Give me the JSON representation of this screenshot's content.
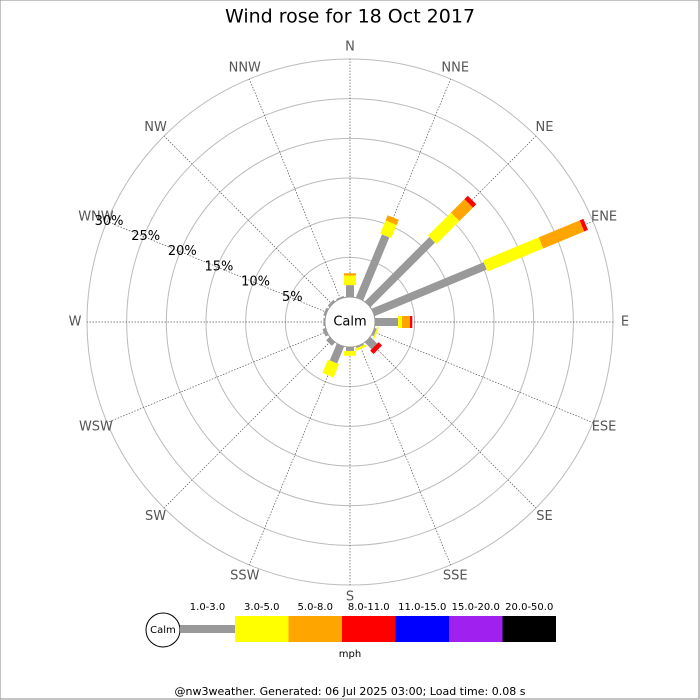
{
  "chart_data": {
    "type": "windrose",
    "title": "Wind rose for 18 Oct 2017",
    "categories": [
      "N",
      "NNE",
      "NE",
      "ENE",
      "E",
      "ESE",
      "SE",
      "SSE",
      "S",
      "SSW",
      "SW",
      "WSW",
      "W",
      "WNW",
      "NW",
      "NNW"
    ],
    "series": [
      {
        "name": "1.0-3.0",
        "color": "#999999",
        "values": [
          1.5,
          8.6,
          11.5,
          15.3,
          2.9,
          0.3,
          1.2,
          0.2,
          0.5,
          2.3,
          0.6,
          0.4,
          0.2,
          0.3,
          0.3,
          0.2
        ]
      },
      {
        "name": "3.0-5.0",
        "color": "#ffff00",
        "values": [
          1.2,
          1.8,
          4.1,
          7.6,
          0.5,
          0.2,
          0,
          0.3,
          0.6,
          1.8,
          0,
          0,
          0,
          0,
          0,
          0
        ]
      },
      {
        "name": "5.0-8.0",
        "color": "#ffa500",
        "values": [
          0.3,
          0.7,
          2.4,
          5.6,
          1.0,
          0,
          0,
          0,
          0,
          0,
          0,
          0,
          0,
          0,
          0,
          0
        ]
      },
      {
        "name": "8.0-11.0",
        "color": "#ff0000",
        "values": [
          0,
          0,
          0.6,
          0.5,
          0.3,
          0,
          0.6,
          0,
          0,
          0,
          0,
          0,
          0,
          0,
          0,
          0
        ]
      },
      {
        "name": "11.0-15.0",
        "color": "#0000ff",
        "values": [
          0,
          0,
          0,
          0,
          0,
          0,
          0,
          0,
          0,
          0,
          0,
          0,
          0,
          0,
          0,
          0
        ]
      },
      {
        "name": "15.0-20.0",
        "color": "#a020f0",
        "values": [
          0,
          0,
          0,
          0,
          0,
          0,
          0,
          0,
          0,
          0,
          0,
          0,
          0,
          0,
          0,
          0
        ]
      },
      {
        "name": "20.0-50.0",
        "color": "#000000",
        "values": [
          0,
          0,
          0,
          0,
          0,
          0,
          0,
          0,
          0,
          0,
          0,
          0,
          0,
          0,
          0,
          0
        ]
      }
    ],
    "rlim": [
      0,
      30
    ],
    "rticks": [
      {
        "value": 5,
        "label": "5%"
      },
      {
        "value": 10,
        "label": "10%"
      },
      {
        "value": 15,
        "label": "15%"
      },
      {
        "value": 20,
        "label": "20%"
      },
      {
        "value": 25,
        "label": "25%"
      },
      {
        "value": 30,
        "label": "30%"
      }
    ],
    "center_label": "Calm",
    "legend_unit": "mph",
    "footer": "@nw3weather. Generated: 06 Jul 2025 03:00; Load time: 0.08 s"
  }
}
